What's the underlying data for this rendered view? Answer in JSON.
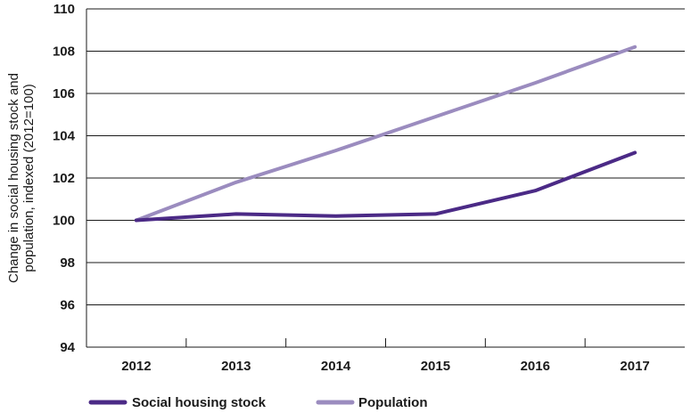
{
  "chart_data": {
    "type": "line",
    "x": [
      "2012",
      "2013",
      "2014",
      "2015",
      "2016",
      "2017"
    ],
    "series": [
      {
        "name": "Social housing stock",
        "color": "#4b2a86",
        "values": [
          100,
          100.3,
          100.2,
          100.3,
          101.4,
          103.2
        ]
      },
      {
        "name": "Population",
        "color": "#9b8cbf",
        "values": [
          100,
          101.8,
          103.3,
          104.9,
          106.5,
          108.2
        ]
      }
    ],
    "ylabel_lines": [
      "Change in social housing stock and",
      "population, indexed (2012=100)"
    ],
    "ylim": [
      94,
      110
    ],
    "yticks": [
      94,
      96,
      98,
      100,
      102,
      104,
      106,
      108,
      110
    ],
    "grid": true,
    "legend_position": "bottom-left"
  }
}
